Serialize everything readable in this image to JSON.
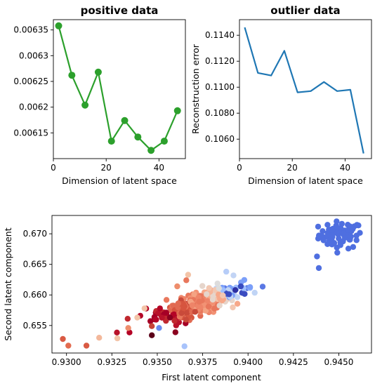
{
  "chart_data": [
    {
      "type": "line",
      "title": "positive data",
      "xlabel": "Dimension of latent space",
      "ylabel": "",
      "color": "#2ca02c",
      "markers": true,
      "xlim": [
        0,
        50
      ],
      "ylim": [
        0.0061,
        0.00637
      ],
      "xticks": [
        0,
        20,
        40
      ],
      "yticks": [
        0.00615,
        0.0062,
        0.00625,
        0.0063,
        0.00635
      ],
      "series": [
        {
          "x": [
            2,
            7,
            12,
            17,
            22,
            27,
            32,
            37,
            42,
            47
          ],
          "values": [
            0.006358,
            0.006262,
            0.006204,
            0.006268,
            0.006134,
            0.006174,
            0.006142,
            0.006116,
            0.006134,
            0.006193
          ]
        }
      ]
    },
    {
      "type": "line",
      "title": "outlier data",
      "xlabel": "Dimension of latent space",
      "ylabel": "Reconstruction error",
      "color": "#1f77b4",
      "markers": false,
      "xlim": [
        0,
        50
      ],
      "ylim": [
        0.1045,
        0.1152
      ],
      "xticks": [
        0,
        20,
        40
      ],
      "yticks": [
        0.106,
        0.108,
        0.11,
        0.112,
        0.114
      ],
      "series": [
        {
          "x": [
            2,
            7,
            12,
            17,
            22,
            27,
            32,
            37,
            42,
            47
          ],
          "values": [
            0.1146,
            0.1111,
            0.1109,
            0.1128,
            0.1096,
            0.1097,
            0.1104,
            0.1097,
            0.1098,
            0.1049
          ]
        }
      ]
    },
    {
      "type": "scatter",
      "title": "",
      "xlabel": "First latent component",
      "ylabel": "Second latent component",
      "xlim": [
        0.9292,
        0.9468
      ],
      "ylim": [
        0.6505,
        0.673
      ],
      "xticks": [
        0.93,
        0.9325,
        0.935,
        0.9375,
        0.94,
        0.9425,
        0.945
      ],
      "ytick_values": [
        0.655,
        0.66,
        0.665,
        0.67
      ],
      "yticks": [
        "0.655",
        "0.660",
        "0.665",
        "0.670"
      ],
      "colormap": "coolwarm",
      "clusters": [
        {
          "name": "outlier cluster",
          "color": "#4f6fe0",
          "cx": 0.9451,
          "cy": 0.6698,
          "sx": 0.0006,
          "sy": 0.0011,
          "n": 70
        },
        {
          "name": "main cluster",
          "cx": 0.9372,
          "cy": 0.6585,
          "sx": 0.0011,
          "sy": 0.0013,
          "corr": 0.75,
          "n": 380
        }
      ],
      "extra_points": [
        {
          "x": 0.9298,
          "y": 0.6528,
          "color": "#d95a43"
        },
        {
          "x": 0.9301,
          "y": 0.6517,
          "color": "#e36b4f"
        },
        {
          "x": 0.9311,
          "y": 0.6517,
          "color": "#d95a43"
        },
        {
          "x": 0.9318,
          "y": 0.653,
          "color": "#f3b89b"
        },
        {
          "x": 0.9328,
          "y": 0.6529,
          "color": "#f3c4a8"
        },
        {
          "x": 0.9334,
          "y": 0.6546,
          "color": "#ee8d6c"
        },
        {
          "x": 0.9339,
          "y": 0.6563,
          "color": "#f3c4a8"
        },
        {
          "x": 0.9343,
          "y": 0.6578,
          "color": "#f3c4a8"
        },
        {
          "x": 0.9347,
          "y": 0.6549,
          "color": "#c64337"
        },
        {
          "x": 0.9347,
          "y": 0.6534,
          "color": "#5a0018"
        },
        {
          "x": 0.9351,
          "y": 0.6546,
          "color": "#6a8bef"
        },
        {
          "x": 0.9365,
          "y": 0.6516,
          "color": "#a8c3fb"
        },
        {
          "x": 0.9357,
          "y": 0.6563,
          "color": "#8b001f"
        },
        {
          "x": 0.936,
          "y": 0.6539,
          "color": "#8b001f"
        },
        {
          "x": 0.9393,
          "y": 0.6608,
          "color": "#2c2fa3"
        },
        {
          "x": 0.9396,
          "y": 0.6614,
          "color": "#3a4cc0"
        },
        {
          "x": 0.9392,
          "y": 0.6632,
          "color": "#c2d4f5"
        },
        {
          "x": 0.9388,
          "y": 0.6638,
          "color": "#b7cdf8"
        },
        {
          "x": 0.9384,
          "y": 0.6611,
          "color": "#dcdddd"
        },
        {
          "x": 0.9367,
          "y": 0.6633,
          "color": "#f3c4a8"
        },
        {
          "x": 0.9366,
          "y": 0.6624,
          "color": "#e8775c"
        },
        {
          "x": 0.9361,
          "y": 0.6614,
          "color": "#ee8d6c"
        },
        {
          "x": 0.9438,
          "y": 0.6663,
          "color": "#4f6fe0"
        },
        {
          "x": 0.9439,
          "y": 0.6644,
          "color": "#4f6fe0"
        }
      ]
    }
  ]
}
